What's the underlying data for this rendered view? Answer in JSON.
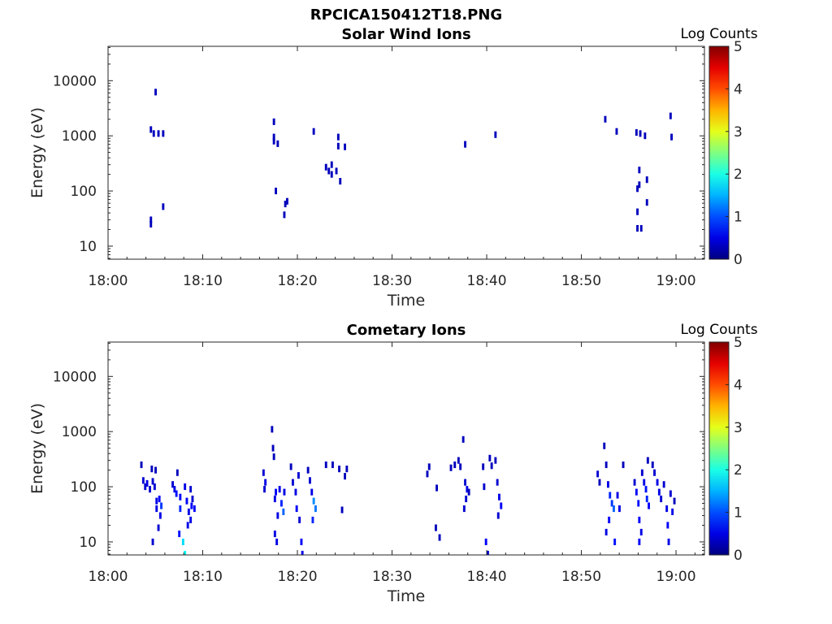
{
  "figure_title": "RPCICA150412T18.PNG",
  "colors": {
    "axis": "#262626",
    "cell_low": "#0a1a9e",
    "cell_mid": "#1e5af0",
    "cell_high": "#2ccdf5"
  },
  "chart_data": [
    {
      "type": "heatmap",
      "title": "Solar Wind Ions",
      "xlabel": "Time",
      "ylabel": "Energy (eV)",
      "x_ticks": [
        "18:00",
        "18:10",
        "18:20",
        "18:30",
        "18:40",
        "18:50",
        "19:00"
      ],
      "y_ticks": [
        "10",
        "100",
        "1000",
        "10000"
      ],
      "y_scale": "log",
      "xlim_minutes": [
        0,
        63
      ],
      "ylim_ev": [
        5.8,
        42000
      ],
      "colorbar": {
        "label": "Log Counts",
        "min": 0,
        "max": 5,
        "ticks": [
          "0",
          "1",
          "2",
          "3",
          "4",
          "5"
        ]
      },
      "cells": [
        [
          4.4,
          25,
          0.3
        ],
        [
          4.4,
          30,
          0.3
        ],
        [
          4.4,
          1300,
          0.3
        ],
        [
          4.7,
          1100,
          0.3
        ],
        [
          4.9,
          6200,
          0.3
        ],
        [
          5.2,
          1100,
          0.3
        ],
        [
          5.7,
          1100,
          0.3
        ],
        [
          5.7,
          52,
          0.3
        ],
        [
          17.4,
          1800,
          0.3
        ],
        [
          17.4,
          950,
          0.3
        ],
        [
          17.4,
          800,
          0.3
        ],
        [
          17.6,
          100,
          0.3
        ],
        [
          17.8,
          720,
          0.3
        ],
        [
          18.5,
          37,
          0.3
        ],
        [
          18.6,
          58,
          0.3
        ],
        [
          18.8,
          65,
          0.3
        ],
        [
          21.6,
          1200,
          0.3
        ],
        [
          22.9,
          270,
          0.3
        ],
        [
          23.2,
          230,
          0.3
        ],
        [
          23.5,
          300,
          0.3
        ],
        [
          23.5,
          200,
          0.3
        ],
        [
          24.0,
          230,
          0.3
        ],
        [
          24.2,
          950,
          0.3
        ],
        [
          24.2,
          650,
          0.3
        ],
        [
          24.4,
          150,
          0.3
        ],
        [
          24.9,
          630,
          0.3
        ],
        [
          37.6,
          700,
          0.3
        ],
        [
          40.8,
          1050,
          0.3
        ],
        [
          52.4,
          2000,
          0.3
        ],
        [
          53.6,
          1200,
          0.3
        ],
        [
          55.7,
          1150,
          0.3
        ],
        [
          56.1,
          1100,
          0.3
        ],
        [
          56.0,
          240,
          0.3
        ],
        [
          55.8,
          110,
          0.3
        ],
        [
          56.0,
          130,
          0.3
        ],
        [
          55.8,
          42,
          0.3
        ],
        [
          55.8,
          21,
          0.3
        ],
        [
          56.2,
          21,
          0.3
        ],
        [
          56.6,
          1000,
          0.3
        ],
        [
          56.8,
          160,
          0.3
        ],
        [
          56.8,
          62,
          0.3
        ],
        [
          59.3,
          2300,
          0.3
        ],
        [
          59.4,
          950,
          0.3
        ]
      ]
    },
    {
      "type": "heatmap",
      "title": "Cometary Ions",
      "xlabel": "Time",
      "ylabel": "Energy (eV)",
      "x_ticks": [
        "18:00",
        "18:10",
        "18:20",
        "18:30",
        "18:40",
        "18:50",
        "19:00"
      ],
      "y_ticks": [
        "10",
        "100",
        "1000",
        "10000"
      ],
      "y_scale": "log",
      "xlim_minutes": [
        0,
        63
      ],
      "ylim_ev": [
        5.8,
        42000
      ],
      "colorbar": {
        "label": "Log Counts",
        "min": 0,
        "max": 5,
        "ticks": [
          "0",
          "1",
          "2",
          "3",
          "4",
          "5"
        ]
      },
      "cells": [
        [
          3.4,
          250,
          0.3
        ],
        [
          3.6,
          130,
          0.4
        ],
        [
          3.8,
          100,
          0.4
        ],
        [
          4.0,
          115,
          0.5
        ],
        [
          4.3,
          90,
          0.4
        ],
        [
          4.5,
          210,
          0.3
        ],
        [
          4.6,
          125,
          0.4
        ],
        [
          4.8,
          100,
          0.4
        ],
        [
          4.9,
          200,
          0.3
        ],
        [
          4.6,
          10,
          0.4
        ],
        [
          5.0,
          55,
          0.5
        ],
        [
          5.0,
          40,
          0.5
        ],
        [
          5.3,
          60,
          0.6
        ],
        [
          5.5,
          45,
          0.9
        ],
        [
          5.2,
          18,
          0.4
        ],
        [
          5.4,
          30,
          0.5
        ],
        [
          6.7,
          110,
          0.4
        ],
        [
          6.9,
          90,
          0.5
        ],
        [
          7.1,
          75,
          0.7
        ],
        [
          7.2,
          180,
          0.3
        ],
        [
          7.5,
          65,
          0.6
        ],
        [
          7.5,
          40,
          0.8
        ],
        [
          7.4,
          14,
          0.7
        ],
        [
          7.8,
          10,
          1.7
        ],
        [
          8.0,
          6,
          1.9
        ],
        [
          8.0,
          100,
          0.5
        ],
        [
          8.2,
          55,
          0.6
        ],
        [
          8.4,
          35,
          0.5
        ],
        [
          8.6,
          90,
          0.4
        ],
        [
          8.7,
          45,
          0.6
        ],
        [
          9.0,
          40,
          0.6
        ],
        [
          8.6,
          25,
          0.5
        ],
        [
          8.3,
          20,
          0.5
        ],
        [
          8.8,
          60,
          0.4
        ],
        [
          16.3,
          180,
          0.4
        ],
        [
          16.5,
          120,
          0.5
        ],
        [
          16.4,
          90,
          0.4
        ],
        [
          17.2,
          1100,
          0.3
        ],
        [
          17.3,
          500,
          0.3
        ],
        [
          17.4,
          350,
          0.3
        ],
        [
          17.5,
          60,
          0.5
        ],
        [
          17.6,
          80,
          0.6
        ],
        [
          17.8,
          30,
          0.5
        ],
        [
          17.5,
          14,
          0.5
        ],
        [
          17.7,
          10,
          0.5
        ],
        [
          18.0,
          90,
          0.5
        ],
        [
          18.2,
          50,
          0.8
        ],
        [
          18.4,
          35,
          1.1
        ],
        [
          18.5,
          80,
          0.5
        ],
        [
          19.2,
          230,
          0.3
        ],
        [
          19.4,
          120,
          0.4
        ],
        [
          19.7,
          80,
          0.5
        ],
        [
          19.8,
          40,
          0.6
        ],
        [
          20.0,
          160,
          0.4
        ],
        [
          20.1,
          25,
          0.4
        ],
        [
          20.3,
          10,
          0.6
        ],
        [
          20.4,
          6,
          0.5
        ],
        [
          21.0,
          200,
          0.3
        ],
        [
          21.2,
          130,
          0.4
        ],
        [
          21.4,
          80,
          0.5
        ],
        [
          21.6,
          55,
          1.3
        ],
        [
          21.8,
          40,
          1.2
        ],
        [
          21.5,
          25,
          0.8
        ],
        [
          22.9,
          250,
          0.3
        ],
        [
          23.6,
          250,
          0.3
        ],
        [
          24.3,
          210,
          0.3
        ],
        [
          24.6,
          38,
          0.3
        ],
        [
          24.9,
          155,
          0.3
        ],
        [
          25.1,
          210,
          0.3
        ],
        [
          33.6,
          170,
          0.3
        ],
        [
          33.8,
          230,
          0.3
        ],
        [
          34.6,
          95,
          0.3
        ],
        [
          34.5,
          18,
          0.3
        ],
        [
          34.9,
          12,
          0.3
        ],
        [
          36.1,
          220,
          0.3
        ],
        [
          36.5,
          250,
          0.3
        ],
        [
          36.9,
          300,
          0.3
        ],
        [
          37.1,
          230,
          0.3
        ],
        [
          37.4,
          720,
          0.3
        ],
        [
          37.6,
          120,
          0.4
        ],
        [
          37.8,
          90,
          0.5
        ],
        [
          37.5,
          40,
          0.4
        ],
        [
          37.7,
          60,
          0.4
        ],
        [
          38.0,
          80,
          0.3
        ],
        [
          39.5,
          230,
          0.3
        ],
        [
          39.6,
          100,
          0.4
        ],
        [
          39.8,
          10,
          0.6
        ],
        [
          40.0,
          6,
          0.4
        ],
        [
          40.2,
          330,
          0.3
        ],
        [
          40.4,
          240,
          0.3
        ],
        [
          40.8,
          300,
          0.3
        ],
        [
          41.0,
          120,
          0.4
        ],
        [
          41.2,
          65,
          0.5
        ],
        [
          41.4,
          45,
          0.6
        ],
        [
          41.1,
          30,
          0.4
        ],
        [
          51.6,
          170,
          0.4
        ],
        [
          51.8,
          120,
          0.3
        ],
        [
          52.3,
          550,
          0.3
        ],
        [
          52.5,
          250,
          0.3
        ],
        [
          52.7,
          110,
          0.5
        ],
        [
          52.9,
          70,
          0.8
        ],
        [
          53.1,
          50,
          0.9
        ],
        [
          53.3,
          40,
          1.1
        ],
        [
          52.8,
          25,
          0.6
        ],
        [
          52.5,
          15,
          0.5
        ],
        [
          53.4,
          10,
          0.7
        ],
        [
          53.7,
          70,
          0.5
        ],
        [
          53.9,
          40,
          0.5
        ],
        [
          54.3,
          250,
          0.3
        ],
        [
          55.5,
          120,
          0.4
        ],
        [
          55.7,
          80,
          0.6
        ],
        [
          55.9,
          50,
          0.7
        ],
        [
          56.0,
          25,
          0.6
        ],
        [
          56.2,
          15,
          0.5
        ],
        [
          56.0,
          10,
          0.6
        ],
        [
          56.3,
          180,
          0.4
        ],
        [
          56.5,
          120,
          0.5
        ],
        [
          56.7,
          90,
          0.7
        ],
        [
          56.8,
          60,
          0.8
        ],
        [
          57.0,
          45,
          0.6
        ],
        [
          56.9,
          300,
          0.3
        ],
        [
          57.4,
          250,
          0.3
        ],
        [
          57.6,
          180,
          0.4
        ],
        [
          57.9,
          120,
          0.5
        ],
        [
          58.1,
          80,
          0.5
        ],
        [
          58.3,
          60,
          0.4
        ],
        [
          58.6,
          110,
          0.4
        ],
        [
          58.9,
          40,
          0.5
        ],
        [
          59.0,
          20,
          0.6
        ],
        [
          59.1,
          10,
          0.5
        ],
        [
          59.3,
          75,
          0.4
        ],
        [
          59.5,
          35,
          0.5
        ],
        [
          59.7,
          55,
          0.3
        ]
      ]
    }
  ]
}
